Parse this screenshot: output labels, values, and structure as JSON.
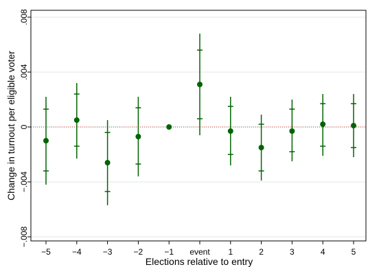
{
  "chart_data": {
    "type": "scatter",
    "title": "",
    "xlabel": "Elections relative to entry",
    "ylabel": "Change in turnout per eligible voter",
    "categories": [
      "−5",
      "−4",
      "−3",
      "−2",
      "−1",
      "event",
      "1",
      "2",
      "3",
      "4",
      "5"
    ],
    "y_ticks": [
      -0.008,
      -0.004,
      0,
      0.004,
      0.008
    ],
    "y_tick_labels": [
      "−.008",
      "−.004",
      "0",
      ".004",
      ".008"
    ],
    "ylim": [
      -0.0083,
      0.0085
    ],
    "grid": true,
    "reference_line": 0,
    "colors": {
      "marker": "#006400",
      "ci": "#006400",
      "reference_line": "#c0392b",
      "grid": "#dfe7ea"
    },
    "series": [
      {
        "estimate": [
          -0.001,
          0.0005,
          -0.0026,
          -0.0007,
          0.0,
          0.0031,
          -0.0003,
          -0.0015,
          -0.0003,
          0.0002,
          0.0001
        ],
        "ci90_low": [
          -0.0032,
          -0.0014,
          -0.0047,
          -0.0027,
          null,
          0.0006,
          -0.002,
          -0.0032,
          -0.0018,
          -0.0014,
          -0.0015
        ],
        "ci90_high": [
          0.0013,
          0.0024,
          -0.0004,
          0.0014,
          null,
          0.0056,
          0.0015,
          0.0002,
          0.0013,
          0.0017,
          0.0017
        ],
        "ci95_low": [
          -0.0042,
          -0.0023,
          -0.0057,
          -0.0036,
          null,
          -0.0006,
          -0.0028,
          -0.0039,
          -0.0025,
          -0.0021,
          -0.0022
        ],
        "ci95_high": [
          0.0022,
          0.0032,
          0.0005,
          0.0022,
          null,
          0.0068,
          0.0022,
          0.0009,
          0.002,
          0.0024,
          0.0024
        ]
      }
    ]
  }
}
